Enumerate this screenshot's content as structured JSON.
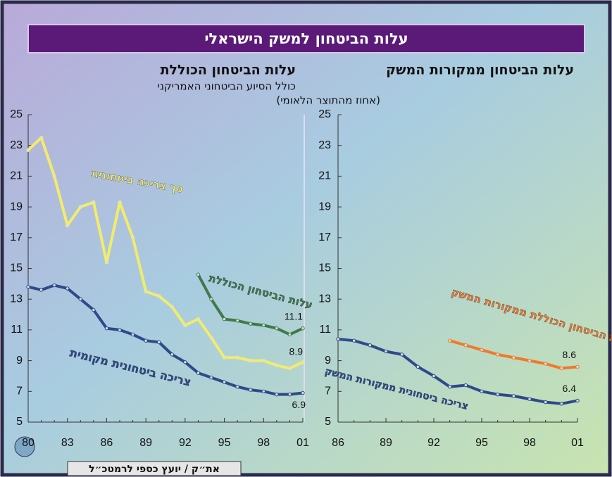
{
  "title": "עלות הביטחון למשק הישראלי",
  "subtitle": "(אחוז מהתוצר הלאומי)",
  "footer": "את״ק / יועץ כספי לרמטכ״ל",
  "chart_data": [
    {
      "type": "line",
      "title": "עלות הביטחון הכוללת",
      "subtitle": "כולל הסיוע הביטחוני האמריקני",
      "categories": [
        "80",
        null,
        null,
        "83",
        null,
        null,
        "86",
        null,
        null,
        "89",
        null,
        null,
        "92",
        null,
        null,
        "95",
        null,
        null,
        "98",
        null,
        null,
        "01"
      ],
      "series": [
        {
          "name": "סך צריכה ביטחונית",
          "color": "#f2ec6a",
          "values": [
            22.7,
            23.5,
            21,
            17.8,
            19,
            19.3,
            15.4,
            19.3,
            17,
            13.5,
            13.2,
            12.5,
            11.3,
            11.7,
            10.5,
            9.2,
            9.2,
            9,
            9,
            8.7,
            8.5,
            8.9
          ]
        },
        {
          "name": "עלות הביטחון הכוללת",
          "color": "#3f7a4a",
          "values": [
            null,
            null,
            null,
            null,
            null,
            null,
            null,
            null,
            null,
            null,
            null,
            null,
            null,
            14.6,
            13,
            11.7,
            11.6,
            11.4,
            11.3,
            11.1,
            10.7,
            11.1
          ]
        },
        {
          "name": "צריכה ביטחונית מקומית",
          "color": "#2e4a8a",
          "values": [
            13.8,
            13.6,
            13.9,
            13.7,
            13,
            12.3,
            11.1,
            11,
            10.7,
            10.3,
            10.2,
            9.4,
            8.9,
            8.2,
            7.9,
            7.6,
            7.3,
            7.1,
            7,
            6.8,
            6.8,
            6.9
          ]
        }
      ],
      "ylim": [
        5,
        25
      ],
      "yticks": [
        5,
        7,
        9,
        11,
        13,
        15,
        17,
        19,
        21,
        23,
        25
      ]
    },
    {
      "type": "line",
      "title": "עלות הביטחון ממקורות המשק",
      "categories": [
        "86",
        null,
        null,
        "89",
        null,
        null,
        "92",
        null,
        null,
        "95",
        null,
        null,
        "98",
        null,
        null,
        "01"
      ],
      "series": [
        {
          "name": "צריכה ביטחונית ממקורות המשק",
          "color": "#2e4a8a",
          "values": [
            10.4,
            10.3,
            10,
            9.6,
            9.4,
            8.6,
            8,
            7.3,
            7.4,
            7,
            6.8,
            6.7,
            6.5,
            6.3,
            6.2,
            6.4
          ]
        },
        {
          "name": "עלות הביטחון הכוללת ממקורות המשק",
          "color": "#f07a2a",
          "values": [
            null,
            null,
            null,
            null,
            null,
            null,
            null,
            10.3,
            10,
            9.7,
            9.4,
            9.2,
            9,
            8.8,
            8.5,
            8.6
          ]
        }
      ],
      "ylim": [
        5,
        25
      ],
      "yticks": [
        5,
        7,
        9,
        11,
        13,
        15,
        17,
        19,
        21,
        23,
        25
      ]
    }
  ]
}
